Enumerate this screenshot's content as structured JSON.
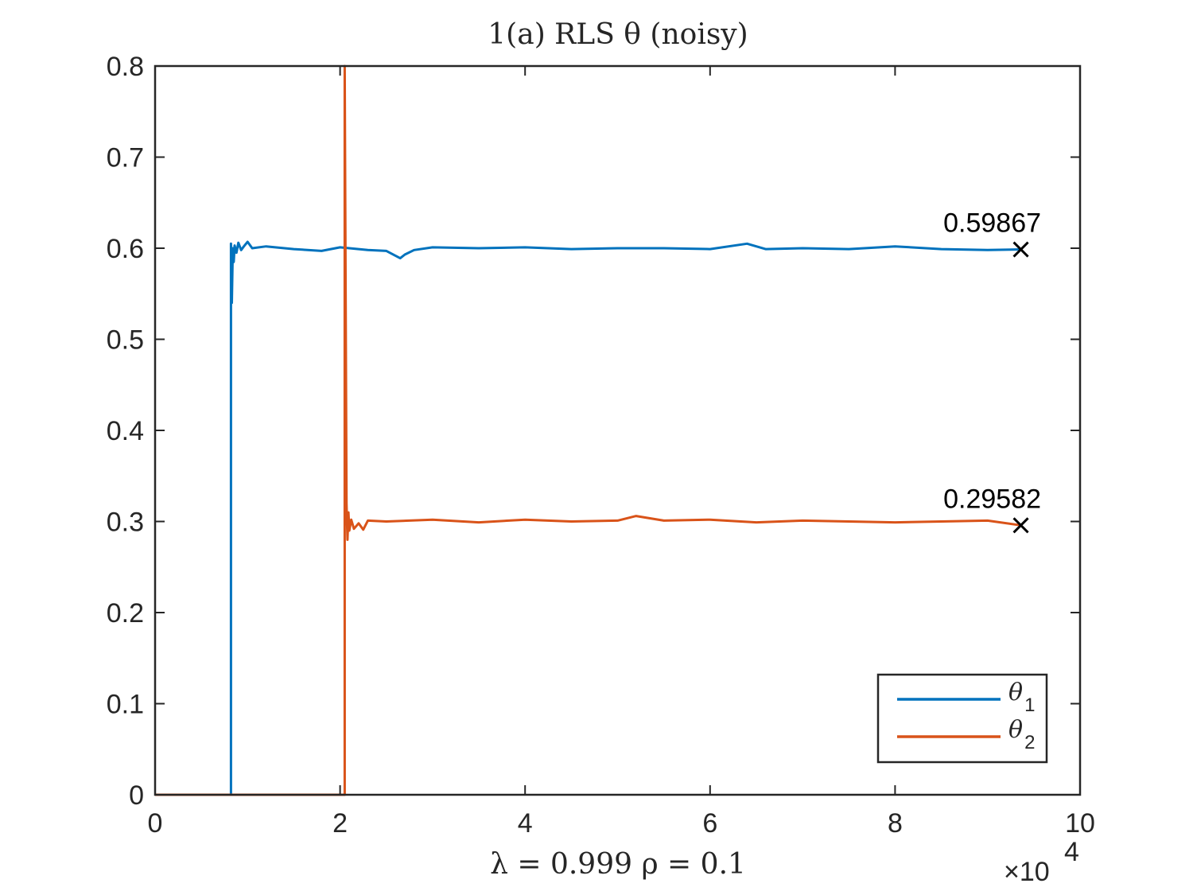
{
  "chart_data": {
    "type": "line",
    "title": "1(a) RLS θ (noisy)",
    "xlabel": "λ = 0.999 ρ = 0.1",
    "ylabel": "",
    "x_multiplier_label": "×10",
    "x_multiplier_exponent": "4",
    "xlim": [
      0,
      10
    ],
    "ylim": [
      0,
      0.8
    ],
    "x_ticks": [
      "0",
      "2",
      "4",
      "6",
      "8",
      "10"
    ],
    "y_ticks": [
      "0",
      "0.1",
      "0.2",
      "0.3",
      "0.4",
      "0.5",
      "0.6",
      "0.7",
      "0.8"
    ],
    "grid": false,
    "legend_position": "bottom-right",
    "series": [
      {
        "name": "θ",
        "subscript": "1",
        "color": "#0072BD",
        "x": [
          0,
          0.82,
          0.82,
          0.83,
          0.84,
          0.85,
          0.86,
          0.88,
          0.9,
          0.93,
          0.96,
          1.0,
          1.05,
          1.2,
          1.5,
          1.8,
          2.0,
          2.3,
          2.5,
          2.65,
          2.7,
          2.8,
          3.0,
          3.5,
          4.0,
          4.5,
          5.0,
          5.5,
          6.0,
          6.4,
          6.6,
          7.0,
          7.5,
          8.0,
          8.5,
          9.0,
          9.36
        ],
        "y": [
          0,
          0,
          0.605,
          0.54,
          0.6,
          0.585,
          0.603,
          0.595,
          0.606,
          0.598,
          0.602,
          0.607,
          0.6,
          0.602,
          0.599,
          0.597,
          0.601,
          0.598,
          0.597,
          0.589,
          0.593,
          0.598,
          0.601,
          0.6,
          0.601,
          0.599,
          0.6,
          0.6,
          0.599,
          0.605,
          0.599,
          0.6,
          0.599,
          0.602,
          0.599,
          0.598,
          0.59867
        ]
      },
      {
        "name": "θ",
        "subscript": "2",
        "color": "#D95319",
        "x": [
          0,
          2.05,
          2.05,
          2.07,
          2.08,
          2.09,
          2.1,
          2.12,
          2.15,
          2.2,
          2.25,
          2.3,
          2.5,
          3.0,
          3.5,
          4.0,
          4.5,
          5.0,
          5.2,
          5.5,
          6.0,
          6.5,
          7.0,
          7.5,
          8.0,
          8.5,
          9.0,
          9.36
        ],
        "y": [
          0,
          0,
          0.8,
          0.32,
          0.28,
          0.31,
          0.29,
          0.302,
          0.292,
          0.298,
          0.291,
          0.301,
          0.3,
          0.302,
          0.299,
          0.302,
          0.3,
          0.301,
          0.306,
          0.301,
          0.302,
          0.299,
          0.301,
          0.3,
          0.299,
          0.3,
          0.301,
          0.29582
        ]
      }
    ],
    "annotations": [
      {
        "x": 9.36,
        "y": 0.59867,
        "marker": "x",
        "label": "0.59867"
      },
      {
        "x": 9.36,
        "y": 0.29582,
        "marker": "x",
        "label": "0.29582"
      }
    ]
  }
}
